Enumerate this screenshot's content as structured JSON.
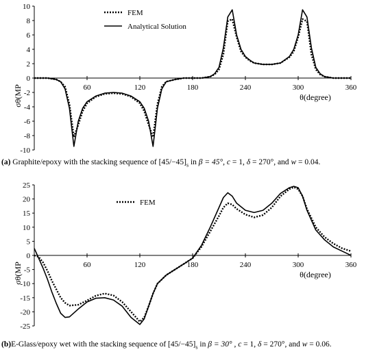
{
  "chart_data": [
    {
      "type": "line",
      "panel": "a",
      "ylabel": "σθ(MP",
      "xlabel": "θ(degree)",
      "xlim": [
        0,
        360
      ],
      "ylim": [
        -10,
        10
      ],
      "x_ticks": [
        "60",
        "120",
        "180",
        "240",
        "300",
        "360"
      ],
      "y_ticks": [
        "10",
        "8",
        "6",
        "4",
        "2",
        "0",
        "-2",
        "-4",
        "-6",
        "-8",
        "-10"
      ],
      "legend": [
        "FEM",
        "Analytical Solution"
      ],
      "series": [
        {
          "name": "FEM",
          "style": "dotted",
          "x": [
            0,
            15,
            25,
            30,
            35,
            40,
            45,
            50,
            55,
            60,
            70,
            80,
            90,
            100,
            110,
            120,
            125,
            130,
            135,
            140,
            145,
            150,
            160,
            170,
            180,
            185,
            190,
            200,
            205,
            210,
            215,
            220,
            225,
            230,
            235,
            240,
            245,
            250,
            260,
            270,
            280,
            290,
            295,
            300,
            305,
            310,
            315,
            320,
            325,
            330,
            340,
            350,
            360
          ],
          "y": [
            0,
            0,
            -0.2,
            -0.5,
            -1.2,
            -3.6,
            -8.2,
            -6.5,
            -4.6,
            -3.5,
            -2.6,
            -2.2,
            -2.1,
            -2.2,
            -2.6,
            -3.5,
            -4.6,
            -6.5,
            -8.2,
            -3.6,
            -1.2,
            -0.5,
            -0.2,
            0,
            0,
            0,
            0,
            0.2,
            0.5,
            1.2,
            3.3,
            7.9,
            8.2,
            5.7,
            3.7,
            2.9,
            2.4,
            2.1,
            1.9,
            1.9,
            2.1,
            2.9,
            3.7,
            5.7,
            8.2,
            7.9,
            3.3,
            1.2,
            0.5,
            0.2,
            0,
            0,
            0
          ]
        },
        {
          "name": "Analytical Solution",
          "style": "solid",
          "x": [
            0,
            15,
            25,
            30,
            35,
            40,
            45,
            50,
            55,
            60,
            70,
            80,
            90,
            100,
            110,
            120,
            125,
            130,
            135,
            140,
            145,
            150,
            160,
            170,
            180,
            185,
            190,
            200,
            205,
            210,
            215,
            220,
            225,
            230,
            235,
            240,
            245,
            250,
            260,
            270,
            280,
            290,
            295,
            300,
            305,
            310,
            315,
            320,
            325,
            330,
            340,
            350,
            360
          ],
          "y": [
            0,
            0,
            -0.2,
            -0.5,
            -1.5,
            -4.2,
            -9.5,
            -6.0,
            -4.2,
            -3.3,
            -2.5,
            -2.1,
            -2.0,
            -2.1,
            -2.5,
            -3.3,
            -4.2,
            -6.0,
            -9.5,
            -4.2,
            -1.5,
            -0.5,
            -0.2,
            0,
            0,
            0,
            0,
            0.2,
            0.6,
            1.5,
            4.2,
            8.5,
            9.5,
            6.0,
            4.0,
            3.0,
            2.5,
            2.1,
            1.9,
            1.9,
            2.1,
            3.0,
            4.0,
            6.0,
            9.5,
            8.5,
            4.2,
            1.5,
            0.6,
            0.2,
            0,
            0,
            0
          ]
        }
      ]
    },
    {
      "type": "line",
      "panel": "b",
      "ylabel": "σθ(MP",
      "xlabel": "θ(degree)",
      "xlim": [
        0,
        360
      ],
      "ylim": [
        -25,
        25
      ],
      "x_ticks": [
        "60",
        "120",
        "180",
        "240",
        "300",
        "360"
      ],
      "y_ticks": [
        "25",
        "20",
        "15",
        "10",
        "5",
        "0",
        "-5",
        "-10",
        "-15",
        "-20",
        "-25"
      ],
      "legend": [
        "FEM"
      ],
      "series": [
        {
          "name": "FEM",
          "style": "dotted",
          "x": [
            0,
            5,
            10,
            15,
            20,
            25,
            30,
            35,
            40,
            50,
            60,
            70,
            80,
            90,
            100,
            110,
            120,
            125,
            130,
            135,
            140,
            150,
            160,
            170,
            180,
            190,
            200,
            210,
            215,
            220,
            225,
            230,
            240,
            250,
            260,
            270,
            280,
            290,
            295,
            300,
            305,
            310,
            320,
            330,
            340,
            350,
            360
          ],
          "y": [
            0,
            -0.5,
            -2.5,
            -5.5,
            -9,
            -12,
            -15,
            -16.8,
            -17.8,
            -17.5,
            -16,
            -14.3,
            -13.5,
            -14.2,
            -16.5,
            -20,
            -23.5,
            -22,
            -18,
            -13.5,
            -10,
            -7,
            -5,
            -3,
            -1,
            3,
            8.5,
            14,
            17,
            18.5,
            18,
            16.5,
            14.5,
            13.5,
            14.3,
            17,
            21,
            23.5,
            24.2,
            23.5,
            21,
            16.5,
            10,
            6.5,
            4.2,
            2.5,
            1.5
          ]
        },
        {
          "name": "",
          "style": "solid",
          "x": [
            0,
            5,
            10,
            15,
            20,
            25,
            30,
            35,
            40,
            50,
            60,
            70,
            80,
            90,
            100,
            110,
            120,
            125,
            130,
            135,
            140,
            150,
            160,
            170,
            180,
            190,
            200,
            210,
            215,
            220,
            225,
            230,
            240,
            250,
            260,
            270,
            280,
            290,
            295,
            300,
            305,
            310,
            320,
            330,
            340,
            350,
            360
          ],
          "y": [
            2.5,
            -1,
            -4.5,
            -8.5,
            -13,
            -17,
            -20.5,
            -22,
            -21.8,
            -19,
            -16.5,
            -15.2,
            -15,
            -15.8,
            -18,
            -22,
            -24.5,
            -22.5,
            -18,
            -13.5,
            -10,
            -7,
            -5,
            -3,
            -1,
            3.5,
            10,
            17,
            20.5,
            22.2,
            21,
            18.5,
            16,
            15.2,
            16,
            18.5,
            22,
            24,
            24.5,
            24,
            21,
            16,
            9,
            5.5,
            3,
            1.5,
            0
          ]
        }
      ]
    }
  ],
  "captions": {
    "a": {
      "label": "(a)",
      "text1": " Graphite/epoxy with the stacking sequence of [45/−45]",
      "sub": "s",
      "text2": " in  ",
      "beta": "β = 45°",
      "text3": ",  ",
      "c": "c",
      "text4": " = 1,  ",
      "delta": "δ",
      "text5": " = 270°",
      "text6": ", and ",
      "w": "w",
      "text7": " = 0.04."
    },
    "b": {
      "label": "(b)",
      "text1": "E-Glass/epoxy wet with the stacking sequence of [45/−45]",
      "sub": "s",
      "text2": " in  ",
      "beta": "β = 30°",
      "text3": " , ",
      "c": "c",
      "text4": " = 1,  ",
      "delta": "δ",
      "text5": " = 270°",
      "text6": ", and ",
      "w": "w",
      "text7": " = 0.06."
    }
  }
}
